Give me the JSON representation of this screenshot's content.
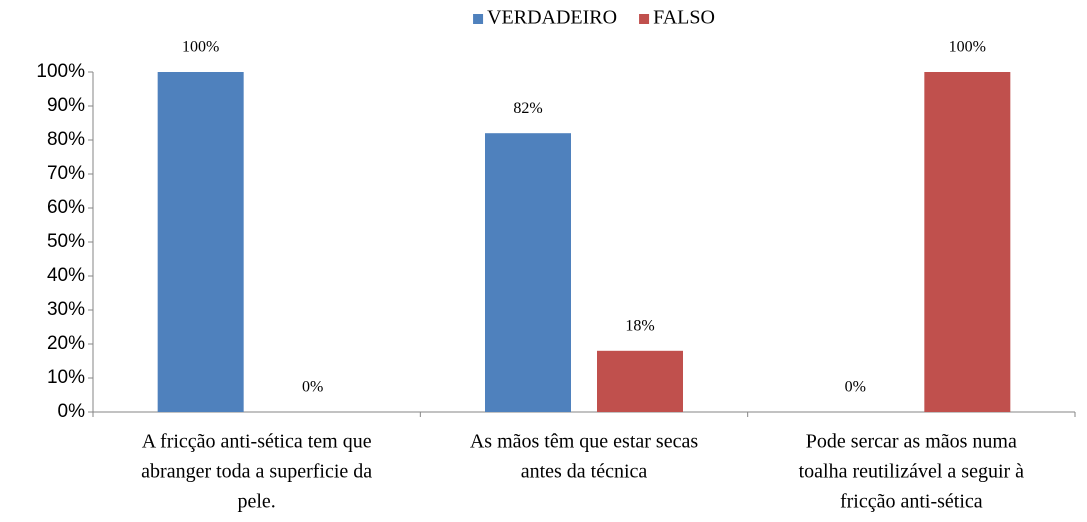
{
  "chart_data": {
    "type": "bar",
    "categories": [
      [
        "A fricção anti-sética tem que",
        "abranger toda a superficie da",
        "pele."
      ],
      [
        "As mãos têm que estar secas",
        "antes da técnica"
      ],
      [
        "Pode sercar as mãos numa",
        "toalha reutilizável a seguir à",
        "fricção anti-sética"
      ]
    ],
    "series": [
      {
        "name": "VERDADEIRO",
        "color": "#4f81bd",
        "values": [
          100,
          82,
          0
        ],
        "value_labels": [
          "100%",
          "82%",
          "0%"
        ]
      },
      {
        "name": "FALSO",
        "color": "#c0504d",
        "values": [
          0,
          18,
          100
        ],
        "value_labels": [
          "0%",
          "18%",
          "100%"
        ]
      }
    ],
    "ylim": [
      0,
      100
    ],
    "yticks": [
      {
        "value": 0,
        "label": "0%"
      },
      {
        "value": 10,
        "label": "10%"
      },
      {
        "value": 20,
        "label": "20%"
      },
      {
        "value": 30,
        "label": "30%"
      },
      {
        "value": 40,
        "label": "40%"
      },
      {
        "value": 50,
        "label": "50%"
      },
      {
        "value": 60,
        "label": "60%"
      },
      {
        "value": 70,
        "label": "70%"
      },
      {
        "value": 80,
        "label": "80%"
      },
      {
        "value": 90,
        "label": "90%"
      },
      {
        "value": 100,
        "label": "100%"
      }
    ],
    "legend": "top",
    "grid": false
  }
}
